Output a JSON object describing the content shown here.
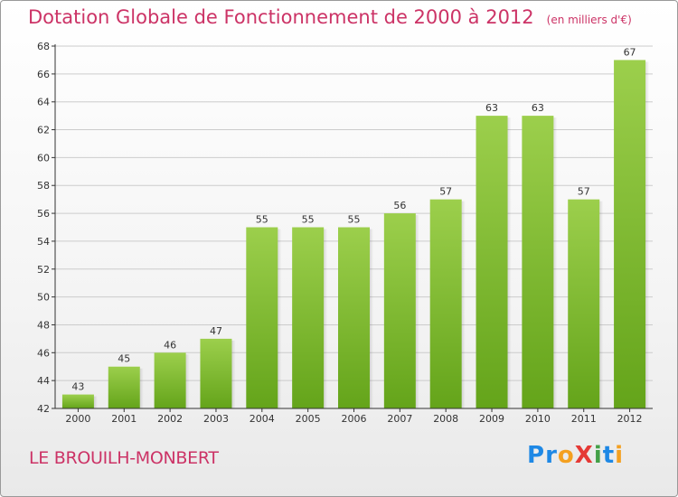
{
  "header": {
    "title": "Dotation Globale de Fonctionnement de 2000 à 2012",
    "unit": "(en milliers d'€)"
  },
  "commune": "LE BROUILH-MONBERT",
  "logo": {
    "text": "Proxiti",
    "letters": [
      {
        "ch": "P",
        "color": "#1e88e5"
      },
      {
        "ch": "r",
        "color": "#1e88e5"
      },
      {
        "ch": "o",
        "color": "#f4a020"
      },
      {
        "ch": "X",
        "color": "#e53935"
      },
      {
        "ch": "i",
        "color": "#43a047"
      },
      {
        "ch": "t",
        "color": "#1e88e5"
      },
      {
        "ch": "i",
        "color": "#f4a020"
      }
    ]
  },
  "chart_data": {
    "type": "bar",
    "title": "Dotation Globale de Fonctionnement de 2000 à 2012",
    "subtitle": "(en milliers d'€)",
    "xlabel": "",
    "ylabel": "",
    "categories": [
      "2000",
      "2001",
      "2002",
      "2003",
      "2004",
      "2005",
      "2006",
      "2007",
      "2008",
      "2009",
      "2010",
      "2011",
      "2012"
    ],
    "values": [
      43,
      45,
      46,
      47,
      55,
      55,
      55,
      56,
      57,
      63,
      63,
      57,
      67
    ],
    "ylim": [
      42,
      68
    ],
    "yticks": [
      42,
      44,
      46,
      48,
      50,
      52,
      54,
      56,
      58,
      60,
      62,
      64,
      66,
      68
    ],
    "grid": true,
    "bar_color_top": "#9ccf4c",
    "bar_color_bottom": "#64a41a",
    "axis_color": "#333333",
    "grid_color": "#cccccc"
  }
}
